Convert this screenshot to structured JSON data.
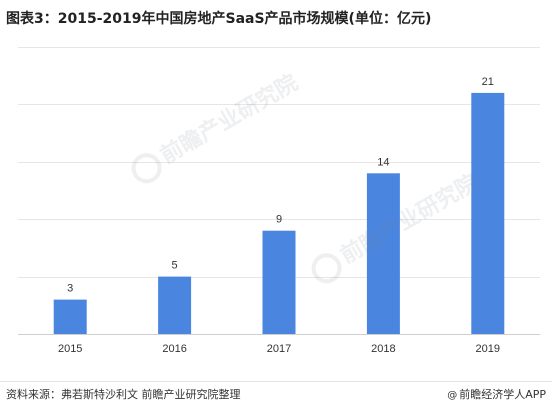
{
  "chart_data": {
    "type": "bar",
    "title": "图表3：2015-2019年中国房地产SaaS产品市场规模(单位：亿元)",
    "categories": [
      "2015",
      "2016",
      "2017",
      "2018",
      "2019"
    ],
    "values": [
      3,
      5,
      9,
      14,
      21
    ],
    "ylim": [
      0,
      25
    ],
    "xlabel": "",
    "ylabel": "",
    "grid": true,
    "legend": "none",
    "bar_color": "#4a86e0"
  },
  "footer": {
    "source": "资料来源：弗若斯特沙利文 前瞻产业研究院整理",
    "credit": "前瞻经济学人APP",
    "credit_icon": "at-icon"
  },
  "watermark": {
    "text": "前瞻产业研究院"
  }
}
